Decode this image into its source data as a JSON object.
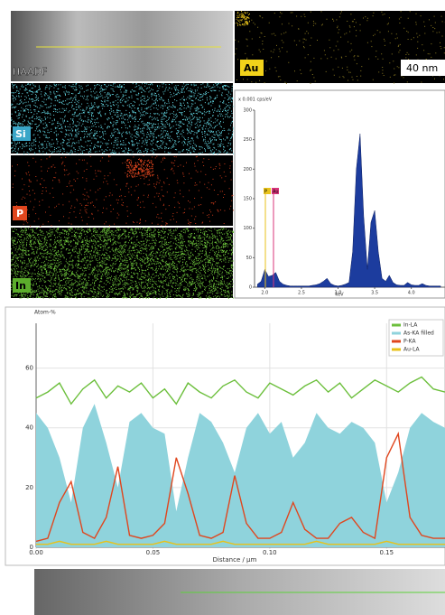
{
  "maps": {
    "haadf": "HAADF",
    "si": "Si",
    "p": "P",
    "in": "In",
    "au": "Au",
    "scale": "40 nm"
  },
  "chart_data": [
    {
      "type": "area",
      "y_label": "x 0.001 cps/eV",
      "x_label": "keV",
      "color": "#1c3c9e",
      "annotations": [
        "P",
        "Au"
      ],
      "x": [
        1.9,
        1.95,
        2.0,
        2.05,
        2.1,
        2.15,
        2.2,
        2.25,
        2.3,
        2.35,
        2.4,
        2.45,
        2.5,
        2.55,
        2.6,
        2.65,
        2.7,
        2.75,
        2.8,
        2.85,
        2.9,
        2.95,
        3.0,
        3.05,
        3.1,
        3.15,
        3.2,
        3.25,
        3.3,
        3.35,
        3.4,
        3.45,
        3.5,
        3.55,
        3.6,
        3.65,
        3.7,
        3.75,
        3.8,
        3.85,
        3.9,
        3.95,
        4.0,
        4.05,
        4.1,
        4.15,
        4.2,
        4.25,
        4.3,
        4.35,
        4.4
      ],
      "values": [
        5,
        10,
        30,
        18,
        20,
        25,
        10,
        5,
        3,
        2,
        2,
        2,
        2,
        2,
        2,
        3,
        4,
        6,
        10,
        15,
        6,
        3,
        2,
        3,
        5,
        8,
        60,
        200,
        260,
        120,
        30,
        110,
        130,
        60,
        15,
        10,
        20,
        8,
        4,
        3,
        3,
        8,
        4,
        3,
        3,
        6,
        3,
        2,
        2,
        2,
        2
      ],
      "xlim": [
        1.86,
        4.46
      ],
      "ylim": [
        0,
        300
      ],
      "xticks": [
        {
          "value": 2,
          "label": "2.0"
        },
        2.5,
        {
          "value": 3,
          "label": "3.0"
        },
        3.5,
        {
          "value": 4,
          "label": "4.0"
        }
      ],
      "yticks": [
        0,
        50,
        100,
        150,
        200,
        250,
        300
      ]
    },
    {
      "type": "line",
      "y_label": "Atom-%",
      "x_label": "Distance / µm",
      "legend": "upper right",
      "grid": true,
      "x": [
        0,
        0.005,
        0.01,
        0.015,
        0.02,
        0.025,
        0.03,
        0.035,
        0.04,
        0.045,
        0.05,
        0.055,
        0.06,
        0.065,
        0.07,
        0.075,
        0.08,
        0.085,
        0.09,
        0.095,
        0.1,
        0.105,
        0.11,
        0.115,
        0.12,
        0.125,
        0.13,
        0.135,
        0.14,
        0.145,
        0.15,
        0.155,
        0.16,
        0.165,
        0.17,
        0.175
      ],
      "series": [
        {
          "name": "In-LA",
          "color": "#6cbf3c",
          "fill": false,
          "values": [
            50,
            52,
            55,
            48,
            53,
            56,
            50,
            54,
            52,
            55,
            50,
            53,
            48,
            55,
            52,
            50,
            54,
            56,
            52,
            50,
            55,
            53,
            51,
            54,
            56,
            52,
            55,
            50,
            53,
            56,
            54,
            52,
            55,
            57,
            53,
            52
          ]
        },
        {
          "name": "As-KA filled",
          "color": "#8fd3dc",
          "fill": true,
          "values": [
            45,
            40,
            30,
            15,
            40,
            48,
            35,
            20,
            42,
            45,
            40,
            38,
            12,
            30,
            45,
            42,
            35,
            25,
            40,
            45,
            38,
            42,
            30,
            35,
            45,
            40,
            38,
            42,
            40,
            35,
            15,
            25,
            40,
            45,
            42,
            40
          ]
        },
        {
          "name": "P-KA",
          "color": "#e0461e",
          "fill": false,
          "values": [
            2,
            3,
            15,
            22,
            5,
            3,
            10,
            27,
            4,
            3,
            4,
            8,
            30,
            18,
            4,
            3,
            5,
            24,
            8,
            3,
            3,
            5,
            15,
            6,
            3,
            3,
            8,
            10,
            5,
            3,
            30,
            38,
            10,
            4,
            3,
            3
          ]
        },
        {
          "name": "Au-LA",
          "color": "#e8c21a",
          "fill": false,
          "values": [
            1,
            1,
            2,
            1,
            1,
            1,
            2,
            1,
            1,
            1,
            1,
            2,
            1,
            1,
            1,
            1,
            2,
            1,
            1,
            1,
            1,
            1,
            1,
            1,
            2,
            1,
            1,
            1,
            1,
            1,
            2,
            1,
            1,
            1,
            1,
            1
          ]
        }
      ],
      "xlim": [
        0,
        0.175
      ],
      "ylim": [
        0,
        75
      ],
      "xticks": [
        {
          "value": 0,
          "label": "0.00"
        },
        {
          "value": 0.05,
          "label": "0.05"
        },
        {
          "value": 0.1,
          "label": "0.10"
        },
        {
          "value": 0.15,
          "label": "0.15"
        }
      ],
      "yticks": [
        0,
        20,
        40,
        60
      ]
    }
  ]
}
